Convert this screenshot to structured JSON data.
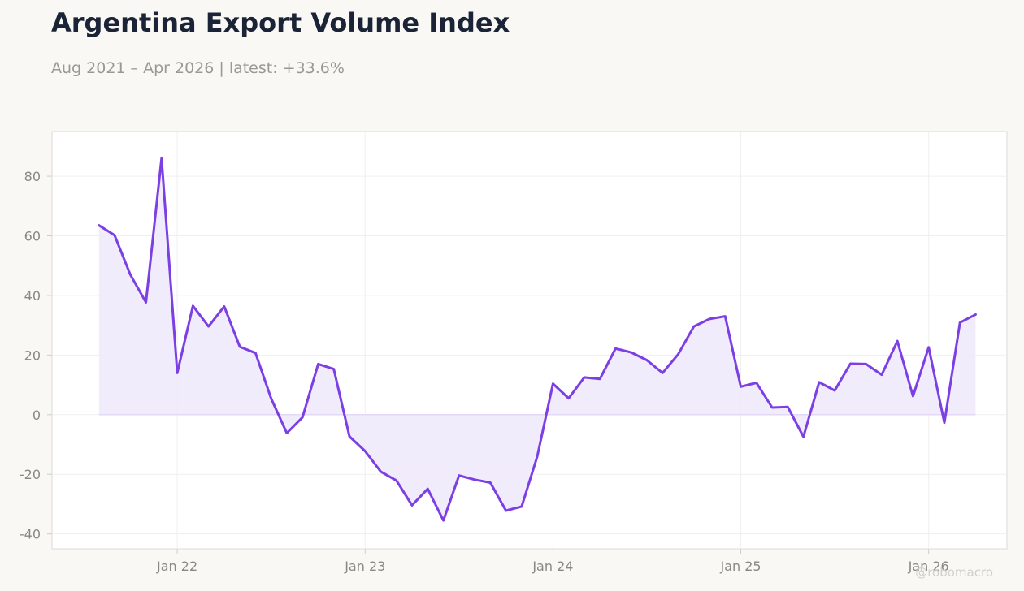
{
  "header": {
    "title": "Argentina Export Volume Index",
    "subtitle": "Aug 2021 – Apr 2026 | latest: +33.6%"
  },
  "watermark": "@robomacro",
  "colors": {
    "line": "#7b3fe4",
    "fill": "#efe9fb",
    "background": "#f9f8f5",
    "plot_background": "#ffffff",
    "grid": "#efefef"
  },
  "chart_data": {
    "type": "area",
    "title": "Argentina Export Volume Index",
    "subtitle": "Aug 2021 – Apr 2026 | latest: +33.6%",
    "xlabel": "",
    "ylabel": "",
    "x_start": "2021-08",
    "x_frequency": "monthly",
    "x_range": [
      "2021-05",
      "2026-06"
    ],
    "ylim": [
      -45,
      95
    ],
    "yticks": [
      -40,
      -20,
      0,
      20,
      40,
      60,
      80
    ],
    "xticks": [
      {
        "date": "2022-01",
        "label": "Jan 22"
      },
      {
        "date": "2023-01",
        "label": "Jan 23"
      },
      {
        "date": "2024-01",
        "label": "Jan 24"
      },
      {
        "date": "2025-01",
        "label": "Jan 25"
      },
      {
        "date": "2026-01",
        "label": "Jan 26"
      }
    ],
    "grid": true,
    "legend": "none",
    "series": [
      {
        "values": [
          63.5,
          60.2,
          47.0,
          37.7,
          86.0,
          14.0,
          36.5,
          29.6,
          36.3,
          22.8,
          20.7,
          5.4,
          -6.2,
          -0.9,
          17.0,
          15.3,
          -7.3,
          -12.2,
          -19.1,
          -22.1,
          -30.4,
          -24.9,
          -35.5,
          -20.4,
          -21.8,
          -22.8,
          -32.2,
          -30.8,
          -14.0,
          10.4,
          5.5,
          12.5,
          12.0,
          22.2,
          20.9,
          18.3,
          14.0,
          20.3,
          29.6,
          32.1,
          33.0,
          9.4,
          10.7,
          2.4,
          2.6,
          -7.4,
          10.9,
          8.1,
          17.1,
          17.0,
          13.4,
          24.7,
          6.2,
          22.6,
          -2.7,
          30.9,
          33.6
        ]
      }
    ]
  }
}
